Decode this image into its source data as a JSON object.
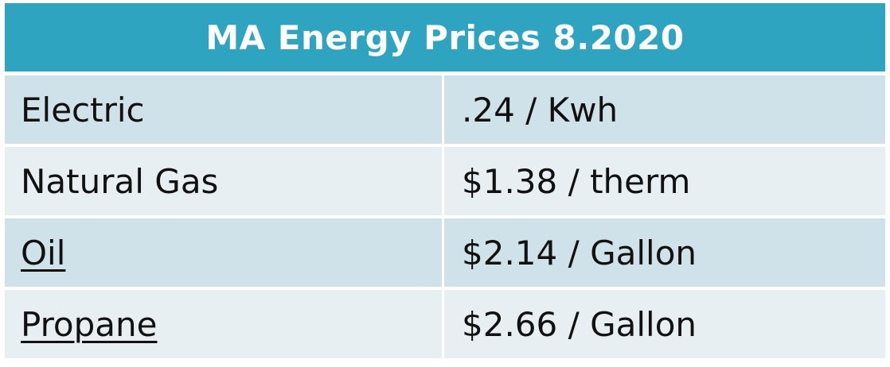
{
  "table": {
    "title": "MA Energy Prices 8.2020",
    "rows": [
      {
        "label": "Electric",
        "price": ".24 / Kwh",
        "underline": false
      },
      {
        "label": "Natural Gas",
        "price": "$1.38 / therm",
        "underline": false
      },
      {
        "label": "Oil",
        "price": "$2.14 / Gallon",
        "underline": true
      },
      {
        "label": "Propane",
        "price": "$2.66 / Gallon",
        "underline": true
      }
    ]
  },
  "colors": {
    "header": "#2ea4c1",
    "row_dark": "#cfe1e9",
    "row_light": "#e8eff3"
  }
}
